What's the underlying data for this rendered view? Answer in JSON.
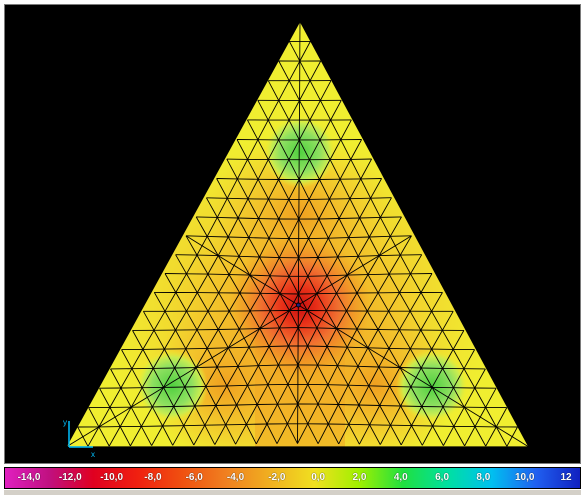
{
  "viewport": {
    "background": "#000000",
    "axis_label": "x",
    "axis_label_y": "y"
  },
  "legend": {
    "labels": [
      "-14,0",
      "-12,0",
      "-10,0",
      "-8,0",
      "-6,0",
      "-4,0",
      "-2,0",
      "0,0",
      "2,0",
      "4,0",
      "6,0",
      "8,0",
      "10,0",
      "12"
    ],
    "colors": [
      "#e020c0",
      "#c01080",
      "#e00020",
      "#f02010",
      "#f05010",
      "#f08020",
      "#f0b020",
      "#f0e020",
      "#a0f000",
      "#20e040",
      "#00e0a0",
      "#00c0f0",
      "#2060f0",
      "#1020c0"
    ]
  },
  "colors": {
    "mesh_line": "#000000",
    "fill_base": "#f0ee30",
    "fill_orange": "#f5b828",
    "fill_deep_orange": "#f09020",
    "fill_red": "#e83018",
    "fill_green": "#7ee050"
  }
}
